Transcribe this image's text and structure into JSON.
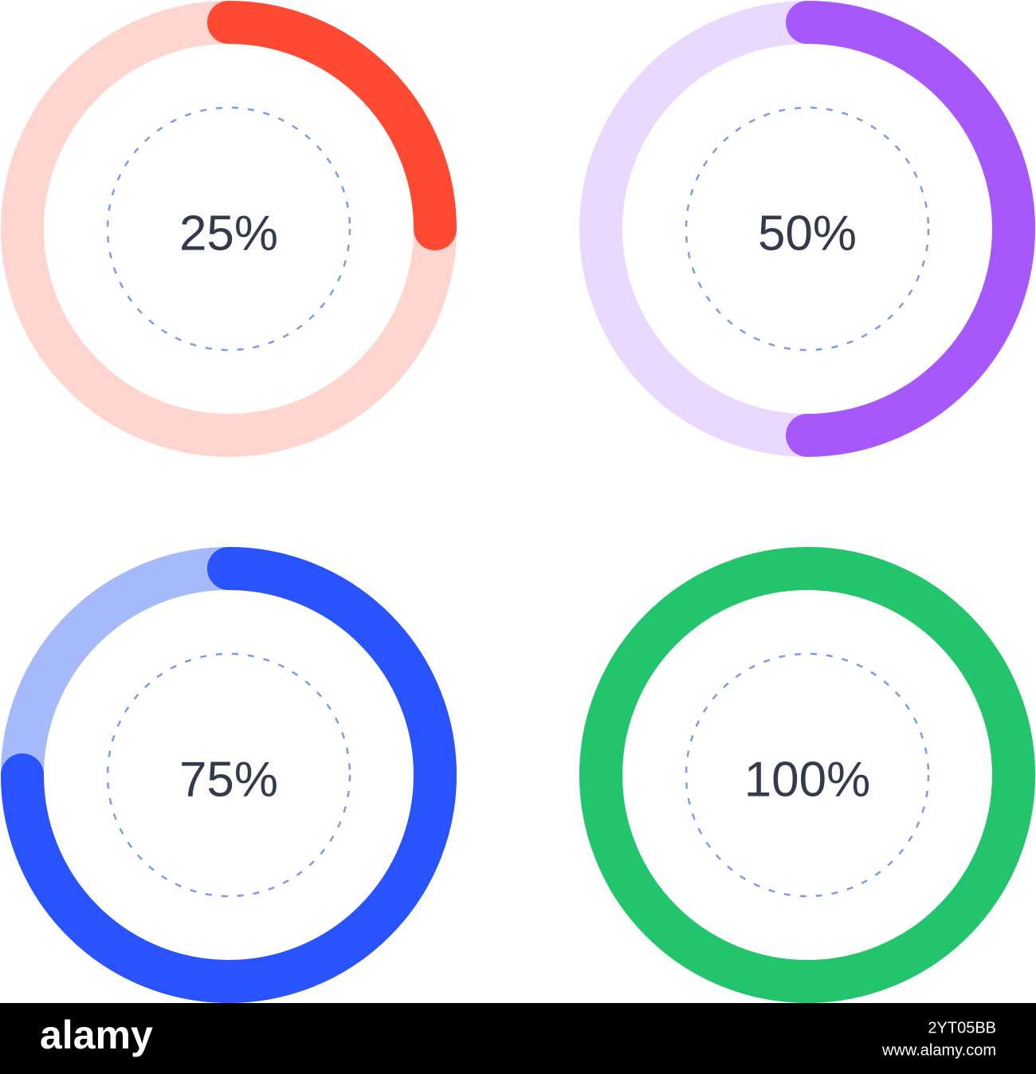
{
  "chart_data": [
    {
      "type": "progress-ring",
      "values": [
        25
      ],
      "value_labels": [
        "25%"
      ],
      "ylim": [
        0,
        100
      ],
      "color": "#ff4a33",
      "track_color": "#ffd6cf"
    },
    {
      "type": "progress-ring",
      "values": [
        50
      ],
      "value_labels": [
        "50%"
      ],
      "ylim": [
        0,
        100
      ],
      "color": "#a658fd",
      "track_color": "#ead8fe"
    },
    {
      "type": "progress-ring",
      "values": [
        75
      ],
      "value_labels": [
        "75%"
      ],
      "ylim": [
        0,
        100
      ],
      "color": "#2853ff",
      "track_color": "#a6b9fb"
    },
    {
      "type": "progress-ring",
      "values": [
        100
      ],
      "value_labels": [
        "100%"
      ],
      "ylim": [
        0,
        100
      ],
      "color": "#22c46c",
      "track_color": "#a7e9c3"
    }
  ],
  "watermark": {
    "brand": "alamy",
    "image_id": "2YT05BB",
    "url": "www.alamy.com"
  }
}
